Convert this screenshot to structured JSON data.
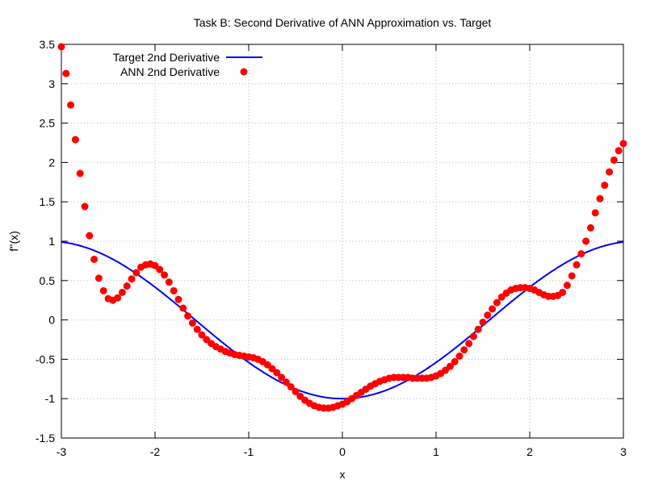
{
  "chart_data": {
    "type": "line",
    "title": "Task B: Second Derivative of ANN Approximation vs. Target",
    "xlabel": "x",
    "ylabel": "f''(x)",
    "xlim": [
      -3,
      3
    ],
    "ylim": [
      -1.5,
      3.5
    ],
    "xticks": [
      -3,
      -2,
      -1,
      0,
      1,
      2,
      3
    ],
    "yticks": [
      -1.5,
      -1,
      -0.5,
      0,
      0.5,
      1,
      1.5,
      2,
      2.5,
      3,
      3.5
    ],
    "xtick_labels": [
      "-3",
      "-2",
      "-1",
      "0",
      "1",
      "2",
      "3"
    ],
    "ytick_labels": [
      "-1.5",
      "-1",
      "-0.5",
      "0",
      "0.5",
      "1",
      "1.5",
      "2",
      "2.5",
      "3",
      "3.5"
    ],
    "grid": true,
    "legend_position": "top-left",
    "series": [
      {
        "name": "Target 2nd Derivative",
        "style": "line",
        "color": "#0000ff",
        "function": "-cos(x)"
      },
      {
        "name": "ANN 2nd Derivative",
        "style": "points",
        "color": "#ff0000",
        "x": [
          -3.0,
          -2.95,
          -2.9,
          -2.85,
          -2.8,
          -2.75,
          -2.7,
          -2.65,
          -2.6,
          -2.55,
          -2.5,
          -2.45,
          -2.4,
          -2.35,
          -2.3,
          -2.25,
          -2.2,
          -2.15,
          -2.1,
          -2.05,
          -2.0,
          -1.95,
          -1.9,
          -1.85,
          -1.8,
          -1.75,
          -1.7,
          -1.65,
          -1.6,
          -1.55,
          -1.5,
          -1.45,
          -1.4,
          -1.35,
          -1.3,
          -1.25,
          -1.2,
          -1.15,
          -1.1,
          -1.05,
          -1.0,
          -0.95,
          -0.9,
          -0.85,
          -0.8,
          -0.75,
          -0.7,
          -0.65,
          -0.6,
          -0.55,
          -0.5,
          -0.45,
          -0.4,
          -0.35,
          -0.3,
          -0.25,
          -0.2,
          -0.15,
          -0.1,
          -0.05,
          0.0,
          0.05,
          0.1,
          0.15,
          0.2,
          0.25,
          0.3,
          0.35,
          0.4,
          0.45,
          0.5,
          0.55,
          0.6,
          0.65,
          0.7,
          0.75,
          0.8,
          0.85,
          0.9,
          0.95,
          1.0,
          1.05,
          1.1,
          1.15,
          1.2,
          1.25,
          1.3,
          1.35,
          1.4,
          1.45,
          1.5,
          1.55,
          1.6,
          1.65,
          1.7,
          1.75,
          1.8,
          1.85,
          1.9,
          1.95,
          2.0,
          2.05,
          2.1,
          2.15,
          2.2,
          2.25,
          2.3,
          2.35,
          2.4,
          2.45,
          2.5,
          2.55,
          2.6,
          2.65,
          2.7,
          2.75,
          2.8,
          2.85,
          2.9,
          2.95,
          3.0
        ],
        "y": [
          3.47,
          3.13,
          2.73,
          2.29,
          1.86,
          1.44,
          1.07,
          0.77,
          0.53,
          0.37,
          0.27,
          0.25,
          0.28,
          0.35,
          0.43,
          0.52,
          0.6,
          0.67,
          0.7,
          0.71,
          0.69,
          0.64,
          0.57,
          0.48,
          0.37,
          0.26,
          0.15,
          0.05,
          -0.04,
          -0.12,
          -0.19,
          -0.25,
          -0.3,
          -0.34,
          -0.37,
          -0.4,
          -0.42,
          -0.44,
          -0.45,
          -0.46,
          -0.47,
          -0.48,
          -0.5,
          -0.53,
          -0.57,
          -0.62,
          -0.67,
          -0.73,
          -0.79,
          -0.85,
          -0.91,
          -0.97,
          -1.02,
          -1.06,
          -1.09,
          -1.11,
          -1.12,
          -1.12,
          -1.11,
          -1.09,
          -1.07,
          -1.04,
          -1.0,
          -0.96,
          -0.92,
          -0.88,
          -0.84,
          -0.81,
          -0.78,
          -0.76,
          -0.74,
          -0.73,
          -0.73,
          -0.73,
          -0.73,
          -0.74,
          -0.74,
          -0.74,
          -0.74,
          -0.73,
          -0.71,
          -0.68,
          -0.64,
          -0.59,
          -0.53,
          -0.46,
          -0.38,
          -0.3,
          -0.21,
          -0.12,
          -0.03,
          0.06,
          0.14,
          0.22,
          0.29,
          0.34,
          0.38,
          0.4,
          0.41,
          0.41,
          0.4,
          0.38,
          0.35,
          0.32,
          0.3,
          0.3,
          0.31,
          0.35,
          0.44,
          0.56,
          0.7,
          0.84,
          1.0,
          1.17,
          1.36,
          1.54,
          1.71,
          1.88,
          2.03,
          2.15,
          2.24
        ]
      }
    ]
  }
}
